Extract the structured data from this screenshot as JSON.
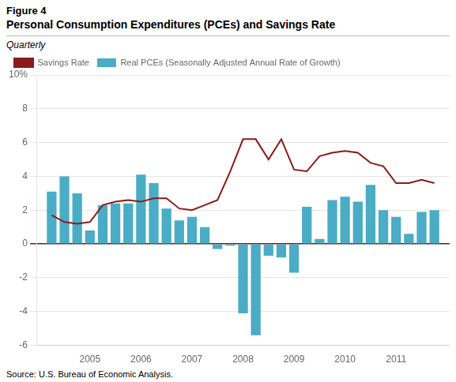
{
  "chart_data": {
    "type": "bar",
    "title": "Personal Consumption Expenditures (PCEs) and Savings Rate",
    "subtitle": "Quarterly",
    "annotations": [
      "Figure 4",
      "Source: U.S. Bureau of Economic Analysis."
    ],
    "x": [
      2004.25,
      2004.5,
      2004.75,
      2005.0,
      2005.25,
      2005.5,
      2005.75,
      2006.0,
      2006.25,
      2006.5,
      2006.75,
      2007.0,
      2007.25,
      2007.5,
      2007.75,
      2008.0,
      2008.25,
      2008.5,
      2008.75,
      2009.0,
      2009.25,
      2009.5,
      2009.75,
      2010.0,
      2010.25,
      2010.5,
      2010.75,
      2011.0,
      2011.25,
      2011.5,
      2011.75
    ],
    "series": [
      {
        "name": "Real PCEs (Seasonally Adjusted Annual Rate of Growth)",
        "type": "bar",
        "color": "#4BACC6",
        "values": [
          3.1,
          4.0,
          3.0,
          0.8,
          2.3,
          2.4,
          2.4,
          4.1,
          3.6,
          2.1,
          1.4,
          1.6,
          1.0,
          -0.3,
          -0.1,
          -4.1,
          -5.4,
          -0.7,
          -0.8,
          -1.7,
          2.2,
          0.3,
          2.6,
          2.8,
          2.5,
          3.5,
          2.0,
          1.6,
          0.6,
          1.9,
          2.0
        ]
      },
      {
        "name": "Savings Rate",
        "type": "line",
        "color": "#8B1A1A",
        "values": [
          1.7,
          1.3,
          1.2,
          1.3,
          2.3,
          2.5,
          2.6,
          2.5,
          2.7,
          2.7,
          2.1,
          2.0,
          2.3,
          2.6,
          4.3,
          6.2,
          6.2,
          5.0,
          6.2,
          4.4,
          4.3,
          5.2,
          5.4,
          5.5,
          5.4,
          4.8,
          4.6,
          3.6,
          3.6,
          3.8,
          3.6
        ]
      }
    ],
    "xlim": [
      2003.95,
      2012.05
    ],
    "xticks": [
      2005,
      2006,
      2007,
      2008,
      2009,
      2010,
      2011
    ],
    "ylim": [
      -6,
      10
    ],
    "yticks": [
      -6,
      -4,
      -2,
      0,
      2,
      4,
      6,
      8,
      {
        "value": 10,
        "label": "10%"
      }
    ],
    "grid": true,
    "legend": "top"
  }
}
